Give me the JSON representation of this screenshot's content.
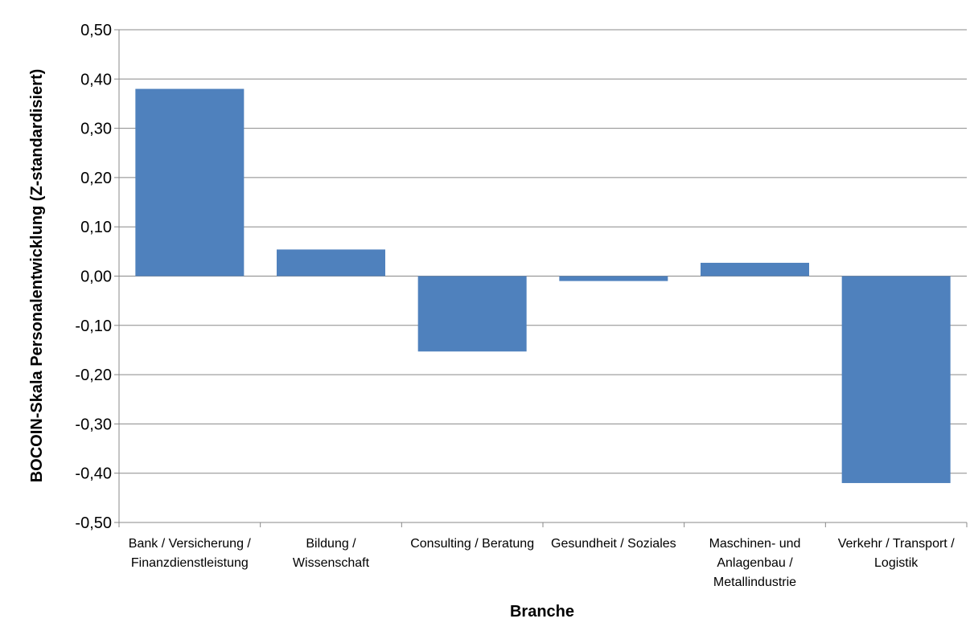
{
  "chart_data": {
    "type": "bar",
    "title": "",
    "xlabel": "Branche",
    "ylabel": "BOCOIN-Skala Personalentwicklung (Z-standardisiert)",
    "categories": [
      [
        "Bank / Versicherung /",
        "Finanzdienstleistung"
      ],
      [
        "Bildung /",
        "Wissenschaft"
      ],
      [
        "Consulting / Beratung"
      ],
      [
        "Gesundheit / Soziales"
      ],
      [
        "Maschinen- und",
        "Anlagenbau /",
        "Metallindustrie"
      ],
      [
        "Verkehr / Transport /",
        "Logistik"
      ]
    ],
    "values": [
      0.38,
      0.054,
      -0.153,
      -0.01,
      0.027,
      -0.42
    ],
    "ylim": [
      -0.5,
      0.5
    ],
    "yticks": [
      "0,50",
      "0,40",
      "0,30",
      "0,20",
      "0,10",
      "0,00",
      "-0,10",
      "-0,20",
      "-0,30",
      "-0,40",
      "-0,50"
    ],
    "grid": true,
    "legend": "none",
    "bar_color": "#4f81bd"
  }
}
